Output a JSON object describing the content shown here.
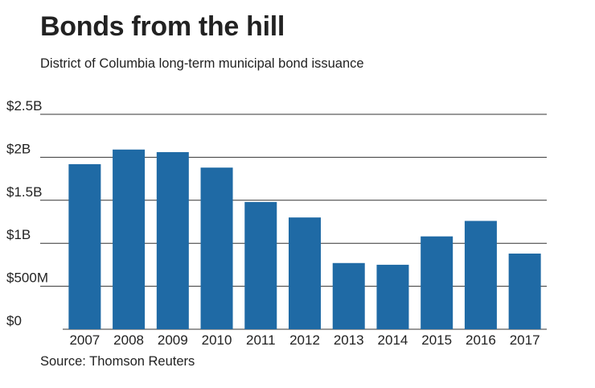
{
  "title": "Bonds from the hill",
  "subtitle": "District of Columbia long-term municipal bond issuance",
  "source": "Source: Thomson Reuters",
  "colors": {
    "bar": "#1f6aa5",
    "grid": "#333333",
    "text": "#222222"
  },
  "chart_data": {
    "type": "bar",
    "title": "Bonds from the hill",
    "xlabel": "",
    "ylabel": "",
    "categories": [
      "2007",
      "2008",
      "2009",
      "2010",
      "2011",
      "2012",
      "2013",
      "2014",
      "2015",
      "2016",
      "2017"
    ],
    "values": [
      1.92,
      2.09,
      2.06,
      1.88,
      1.48,
      1.3,
      0.77,
      0.75,
      1.08,
      1.26,
      0.88
    ],
    "value_unit": "billions of dollars",
    "ylim": [
      0,
      2.5
    ],
    "yticks": [
      0,
      0.5,
      1,
      1.5,
      2,
      2.5
    ],
    "ytick_labels": [
      "$0",
      "$500M",
      "$1B",
      "$1.5B",
      "$2B",
      "$2.5B"
    ],
    "grid": true
  }
}
